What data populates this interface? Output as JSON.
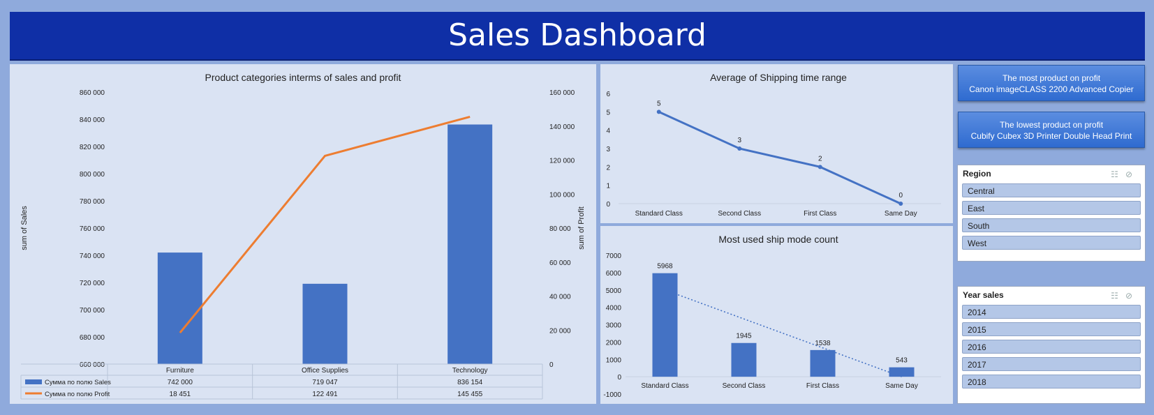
{
  "dashboard": {
    "title": "Sales Dashboard",
    "most_profit": {
      "label": "The most product on profit",
      "product": "Canon imageCLASS 2200 Advanced Copier"
    },
    "lowest_profit": {
      "label": "The lowest product on profit",
      "product": "Cubify Cubex 3D Printer Double Head Print"
    },
    "slicer_icons": {
      "multiselect": "multiselect-icon",
      "clear_filter": "clear-filter-icon"
    },
    "region_slicer": {
      "title": "Region",
      "items": [
        "Central",
        "East",
        "South",
        "West"
      ]
    },
    "year_slicer": {
      "title": "Year sales",
      "items": [
        "2014",
        "2015",
        "2016",
        "2017",
        "2018"
      ]
    }
  },
  "colors": {
    "bar": "#4472c4",
    "profit_line": "#ed7d31",
    "banner": "#0f2fa6",
    "background": "#8faadc",
    "panel": "#dae3f3"
  },
  "chart_data": [
    {
      "type": "bar",
      "title": "Product categories interms of sales and profit",
      "categories": [
        "Furniture",
        "Office Supplies",
        "Technology"
      ],
      "ylabel": "sum of Sales",
      "y2label": "sum of Profit",
      "ylim": [
        660000,
        860000
      ],
      "y2lim": [
        0,
        160000
      ],
      "yticks": [
        "860 000",
        "840 000",
        "820 000",
        "800 000",
        "780 000",
        "760 000",
        "740 000",
        "720 000",
        "700 000",
        "680 000",
        "660 000"
      ],
      "y2ticks": [
        "160 000",
        "140 000",
        "120 000",
        "100 000",
        "80 000",
        "60 000",
        "40 000",
        "20 000",
        "0"
      ],
      "series": [
        {
          "name": "Сумма по полю Sales",
          "type": "bar",
          "axis": "left",
          "values": [
            742000,
            719047,
            836154
          ],
          "labels": [
            "742 000",
            "719 047",
            "836 154"
          ]
        },
        {
          "name": "Сумма по полю Profit",
          "type": "line",
          "axis": "right",
          "values": [
            18451,
            122491,
            145455
          ],
          "labels": [
            "18 451",
            "122 491",
            "145 455"
          ]
        }
      ],
      "legend": "data-table-bottom",
      "grid": false
    },
    {
      "type": "line",
      "title": "Average of Shipping time range",
      "categories": [
        "Standard Class",
        "Second Class",
        "First Class",
        "Same Day"
      ],
      "values": [
        5,
        3,
        2,
        0
      ],
      "ylim": [
        0,
        6
      ],
      "yticks": [
        "6",
        "5",
        "4",
        "3",
        "2",
        "1",
        "0"
      ],
      "grid": false
    },
    {
      "type": "bar",
      "title": "Most used ship mode count",
      "categories": [
        "Standard Class",
        "Second Class",
        "First Class",
        "Same Day"
      ],
      "values": [
        5968,
        1945,
        1538,
        543
      ],
      "ylim": [
        -1000,
        7000
      ],
      "yticks": [
        "7000",
        "6000",
        "5000",
        "4000",
        "3000",
        "2000",
        "1000",
        "0",
        "-1000"
      ],
      "trendline": "linear-dotted",
      "grid": false
    }
  ]
}
